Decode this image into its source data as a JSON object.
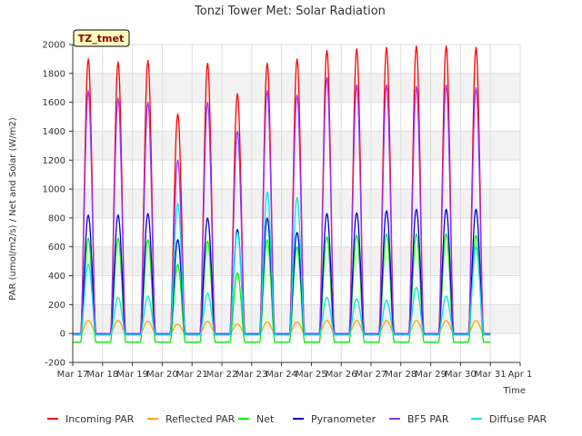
{
  "chart_data": {
    "type": "line",
    "title": "Tonzi Tower Met: Solar Radiation",
    "xlabel": "Time",
    "ylabel": "PAR (umol/m2/s) / Net and Solar (W/m2)",
    "ylim": [
      -200,
      2000
    ],
    "xlim_days": [
      "Mar 17",
      "Apr 1"
    ],
    "yticks": [
      -200,
      0,
      200,
      400,
      600,
      800,
      1000,
      1200,
      1400,
      1600,
      1800,
      2000
    ],
    "xticks": [
      "Mar 17",
      "Mar 18",
      "Mar 19",
      "Mar 20",
      "Mar 21",
      "Mar 22",
      "Mar 23",
      "Mar 24",
      "Mar 25",
      "Mar 26",
      "Mar 27",
      "Mar 28",
      "Mar 29",
      "Mar 30",
      "Mar 31",
      "Apr 1"
    ],
    "grid": true,
    "legend_position": "bottom",
    "annotation": "TZ_tmet",
    "days": [
      "Mar 17",
      "Mar 18",
      "Mar 19",
      "Mar 20",
      "Mar 21",
      "Mar 22",
      "Mar 23",
      "Mar 24",
      "Mar 25",
      "Mar 26",
      "Mar 27",
      "Mar 28",
      "Mar 29",
      "Mar 30",
      "Mar 31"
    ],
    "series": [
      {
        "name": "Incoming PAR",
        "color": "#ff0000",
        "night": 0,
        "daily_peak": [
          1900,
          1880,
          1890,
          1520,
          1870,
          1660,
          1870,
          1900,
          1960,
          1970,
          1980,
          1990,
          1990,
          1980,
          null
        ]
      },
      {
        "name": "Reflected PAR",
        "color": "#ffa500",
        "night": 0,
        "daily_peak": [
          90,
          90,
          85,
          65,
          85,
          65,
          80,
          80,
          90,
          90,
          90,
          90,
          90,
          90,
          null
        ]
      },
      {
        "name": "Net",
        "color": "#00ee00",
        "night": -60,
        "daily_peak": [
          660,
          660,
          650,
          480,
          640,
          420,
          650,
          600,
          670,
          680,
          690,
          690,
          690,
          680,
          null
        ]
      },
      {
        "name": "Pyranometer",
        "color": "#0000cc",
        "night": -10,
        "daily_peak": [
          820,
          820,
          830,
          650,
          800,
          720,
          800,
          700,
          830,
          835,
          850,
          860,
          860,
          860,
          null
        ]
      },
      {
        "name": "BF5 PAR",
        "color": "#9b30ff",
        "night": 0,
        "daily_peak": [
          1680,
          1630,
          1600,
          1200,
          1600,
          1400,
          1680,
          1650,
          1770,
          1720,
          1720,
          1710,
          1720,
          1700,
          null
        ]
      },
      {
        "name": "Diffuse PAR",
        "color": "#00e5ee",
        "night": -10,
        "daily_peak": [
          480,
          250,
          260,
          900,
          280,
          700,
          980,
          940,
          250,
          240,
          230,
          320,
          260,
          600,
          null
        ]
      }
    ]
  }
}
